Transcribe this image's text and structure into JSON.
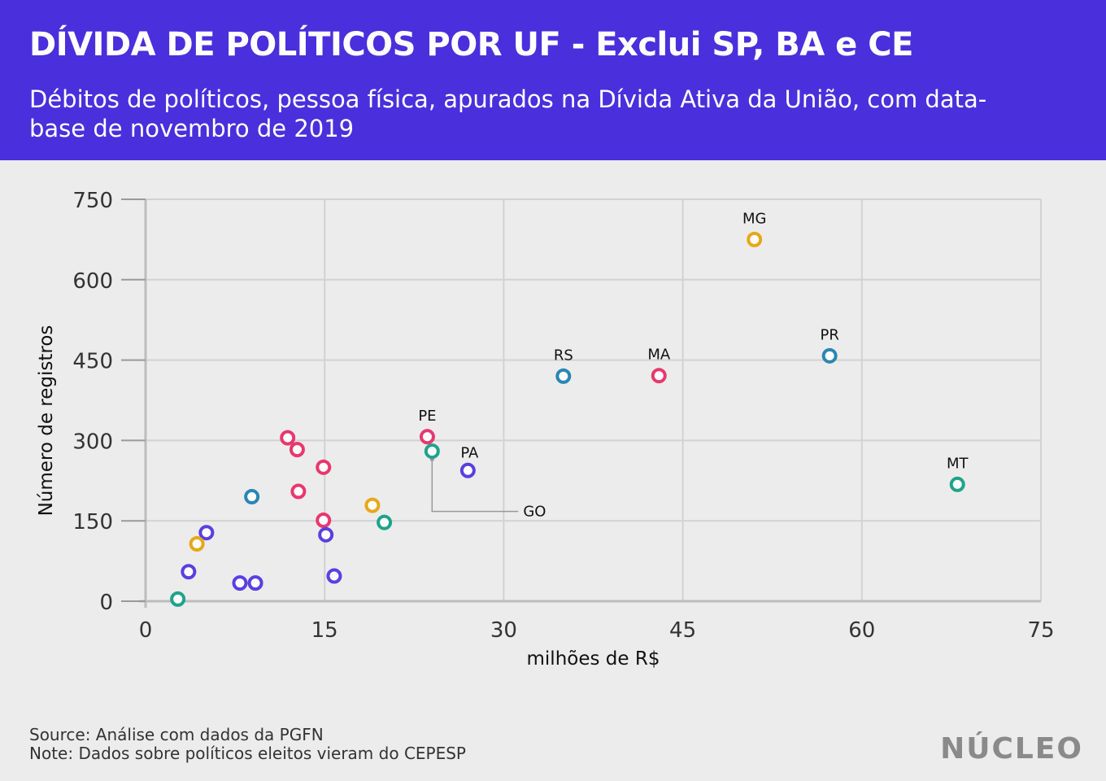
{
  "header": {
    "title": "DÍVIDA DE POLÍTICOS POR UF - Exclui SP, BA e CE",
    "subtitle": "Débitos de políticos, pessoa física, apurados na Dívida Ativa da União, com data-base de novembro de 2019"
  },
  "footer": {
    "source": "Source: Análise com dados da PGFN",
    "note": "Note: Dados sobre políticos eleitos vieram do CEPESP"
  },
  "logo": {
    "text": "NÚCLEO"
  },
  "colors": {
    "purple": "#5a3fe0",
    "pink": "#e8386d",
    "teal": "#1fa38a",
    "yellow": "#e6a817",
    "blue": "#2a86b3",
    "header_bg": "#4a2fdc"
  },
  "chart_data": {
    "type": "scatter",
    "xlabel": "milhões de R$",
    "ylabel": "Número de registros",
    "xlim": [
      0,
      75
    ],
    "ylim": [
      0,
      750
    ],
    "xticks": [
      0,
      15,
      30,
      45,
      60,
      75
    ],
    "yticks": [
      0,
      150,
      300,
      450,
      600,
      750
    ],
    "grid": true,
    "points": [
      {
        "x": 51.0,
        "y": 675,
        "label": "MG",
        "color": "#e6a817"
      },
      {
        "x": 57.3,
        "y": 458,
        "label": "PR",
        "color": "#2a86b3"
      },
      {
        "x": 35.0,
        "y": 420,
        "label": "RS",
        "color": "#2a86b3"
      },
      {
        "x": 43.0,
        "y": 421,
        "label": "MA",
        "color": "#e8386d"
      },
      {
        "x": 68.0,
        "y": 218,
        "label": "MT",
        "color": "#1fa38a"
      },
      {
        "x": 23.6,
        "y": 307,
        "label": "PE",
        "color": "#e8386d"
      },
      {
        "x": 27.0,
        "y": 244,
        "label": "PA",
        "color": "#5a3fe0"
      },
      {
        "x": 24.0,
        "y": 280,
        "label": "GO",
        "color": "#1fa38a",
        "callout": true
      },
      {
        "x": 11.9,
        "y": 305,
        "label": "",
        "color": "#e8386d"
      },
      {
        "x": 12.7,
        "y": 283,
        "label": "",
        "color": "#e8386d"
      },
      {
        "x": 14.9,
        "y": 250,
        "label": "",
        "color": "#e8386d"
      },
      {
        "x": 12.8,
        "y": 205,
        "label": "",
        "color": "#e8386d"
      },
      {
        "x": 14.9,
        "y": 151,
        "label": "",
        "color": "#e8386d"
      },
      {
        "x": 8.9,
        "y": 195,
        "label": "",
        "color": "#2a86b3"
      },
      {
        "x": 19.0,
        "y": 179,
        "label": "",
        "color": "#e6a817"
      },
      {
        "x": 20.0,
        "y": 147,
        "label": "",
        "color": "#1fa38a"
      },
      {
        "x": 15.1,
        "y": 124,
        "label": "",
        "color": "#5a3fe0"
      },
      {
        "x": 5.1,
        "y": 128,
        "label": "",
        "color": "#5a3fe0"
      },
      {
        "x": 4.3,
        "y": 107,
        "label": "",
        "color": "#e6a817"
      },
      {
        "x": 3.6,
        "y": 55,
        "label": "",
        "color": "#5a3fe0"
      },
      {
        "x": 7.9,
        "y": 34,
        "label": "",
        "color": "#5a3fe0"
      },
      {
        "x": 9.2,
        "y": 34,
        "label": "",
        "color": "#5a3fe0"
      },
      {
        "x": 15.8,
        "y": 47,
        "label": "",
        "color": "#5a3fe0"
      },
      {
        "x": 2.7,
        "y": 4,
        "label": "",
        "color": "#1fa38a"
      }
    ]
  }
}
